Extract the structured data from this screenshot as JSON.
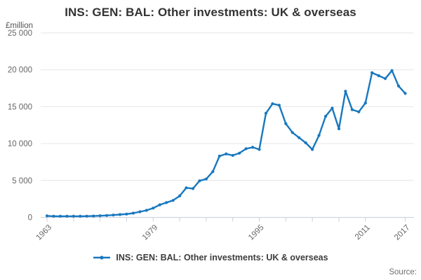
{
  "header": {
    "title": "INS: GEN: BAL: Other investments: UK & overseas"
  },
  "y_axis": {
    "unit_label": "£million",
    "ticks": [
      {
        "value": 0,
        "label": "0"
      },
      {
        "value": 5000,
        "label": "5 000"
      },
      {
        "value": 10000,
        "label": "10 000"
      },
      {
        "value": 15000,
        "label": "15 000"
      },
      {
        "value": 20000,
        "label": "20 000"
      },
      {
        "value": 25000,
        "label": "25 000"
      }
    ]
  },
  "x_axis": {
    "tick_years": [
      1963,
      1967,
      1971,
      1975,
      1979,
      1983,
      1987,
      1991,
      1995,
      1999,
      2003,
      2007,
      2011,
      2017
    ],
    "labeled_years": [
      1963,
      1979,
      1995,
      2011,
      2017
    ]
  },
  "chart_data": {
    "type": "line",
    "title": "INS: GEN: BAL: Other investments: UK & overseas",
    "ylabel": "£million",
    "ylim": [
      0,
      25000
    ],
    "grid": true,
    "legend_position": "bottom",
    "years": [
      1963,
      1964,
      1965,
      1966,
      1967,
      1968,
      1969,
      1970,
      1971,
      1972,
      1973,
      1974,
      1975,
      1976,
      1977,
      1978,
      1979,
      1980,
      1981,
      1982,
      1983,
      1984,
      1985,
      1986,
      1987,
      1988,
      1989,
      1990,
      1991,
      1992,
      1993,
      1994,
      1995,
      1996,
      1997,
      1998,
      1999,
      2000,
      2001,
      2002,
      2003,
      2004,
      2005,
      2006,
      2007,
      2008,
      2009,
      2010,
      2011,
      2012,
      2013,
      2014,
      2015,
      2016,
      2017
    ],
    "series": [
      {
        "name": "INS: GEN: BAL: Other investments: UK & overseas",
        "values": [
          200,
          150,
          150,
          150,
          150,
          150,
          160,
          180,
          220,
          260,
          310,
          380,
          450,
          570,
          760,
          950,
          1250,
          1700,
          2000,
          2300,
          2900,
          4000,
          3900,
          4950,
          5200,
          6200,
          8300,
          8600,
          8400,
          8700,
          9300,
          9500,
          9200,
          14100,
          15400,
          15200,
          12700,
          11500,
          10800,
          10100,
          9200,
          11100,
          13700,
          14800,
          12000,
          17100,
          14600,
          14300,
          15500,
          19600,
          19200,
          18800,
          19900,
          17800,
          16800
        ]
      }
    ]
  },
  "legend": {
    "label": "INS: GEN: BAL: Other investments: UK & overseas"
  },
  "footer": {
    "source_label": "Source:"
  },
  "colors": {
    "line": "#1878bf",
    "grid": "#e6e6e6",
    "axis": "#c9cfdb",
    "tick_text": "#666666",
    "title_text": "#333333"
  }
}
